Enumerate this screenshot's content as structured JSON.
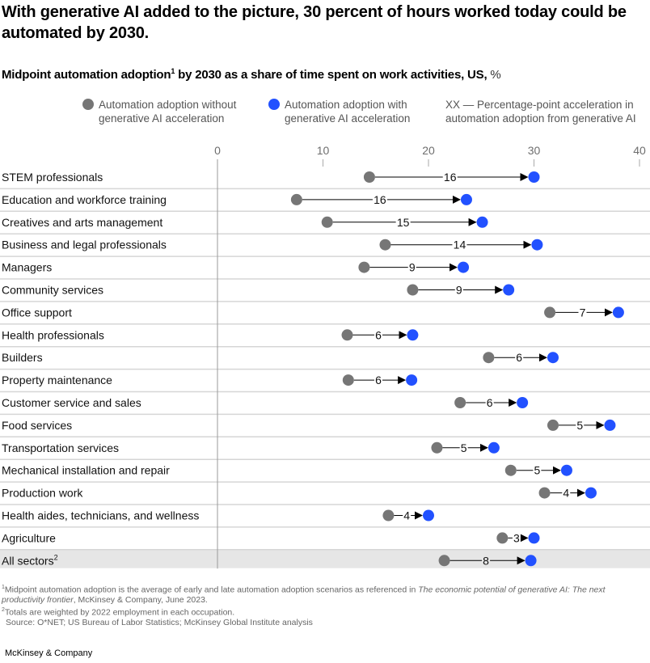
{
  "title": "With generative AI added to the picture, 30 percent of hours worked today could be automated by 2030.",
  "subtitle": {
    "text_before": "Midpoint automation adoption",
    "superscript": "1",
    "text_after": " by 2030 as a share of time spent on work activities, US, ",
    "unit": "%"
  },
  "legend": {
    "without": {
      "line1": "Automation adoption without",
      "line2": "generative AI acceleration"
    },
    "with": {
      "line1": "Automation adoption with",
      "line2": "generative AI acceleration"
    },
    "delta": {
      "line1": "XX — Percentage-point acceleration in",
      "line2": "automation adoption from generative AI"
    }
  },
  "colors": {
    "without": "#767676",
    "with": "#2251FF",
    "arrow": "#000000",
    "gridline": "#d6d6d6",
    "axis_line": "#9a9a9a",
    "highlight_row": "#e6e6e6"
  },
  "chart_data": {
    "type": "dumbbell",
    "title": "Midpoint automation adoption by 2030 as a share of time spent on work activities, US, %",
    "xlabel": "",
    "ylabel": "",
    "xlim": [
      0,
      40
    ],
    "xticks": [
      0,
      10,
      20,
      30,
      40
    ],
    "legend": [
      "Automation adoption without generative AI acceleration",
      "Automation adoption with generative AI acceleration"
    ],
    "legend_position": "top",
    "categories": [
      "STEM professionals",
      "Education and workforce training",
      "Creatives and arts management",
      "Business and legal professionals",
      "Managers",
      "Community services",
      "Office support",
      "Health professionals",
      "Builders",
      "Property maintenance",
      "Customer service and sales",
      "Food services",
      "Transportation services",
      "Mechanical installation and repair",
      "Production work",
      "Health aides, technicians, and wellness",
      "Agriculture",
      "All sectors"
    ],
    "category_superscripts": {
      "All sectors": "2"
    },
    "highlight_category": "All sectors",
    "series": [
      {
        "name": "Automation adoption without generative AI acceleration",
        "values": [
          14.4,
          7.5,
          10.4,
          15.9,
          13.9,
          18.5,
          31.5,
          12.3,
          25.7,
          12.4,
          23.0,
          31.8,
          20.8,
          27.8,
          31.0,
          16.2,
          27.0,
          21.5
        ]
      },
      {
        "name": "Automation adoption with generative AI acceleration",
        "values": [
          30.0,
          23.6,
          25.1,
          30.3,
          23.3,
          27.6,
          38.0,
          18.5,
          31.8,
          18.4,
          28.9,
          37.2,
          26.2,
          33.1,
          35.4,
          20.0,
          30.0,
          29.7
        ]
      }
    ],
    "delta_labels": [
      16,
      16,
      15,
      14,
      9,
      9,
      7,
      6,
      6,
      6,
      6,
      5,
      5,
      5,
      4,
      4,
      3,
      8
    ]
  },
  "footnotes": {
    "note1_sup": "1",
    "note1_text": "Midpoint automation adoption is the average of early and late automation adoption scenarios as referenced in ",
    "note1_italic": "The economic potential of generative AI: The next productivity frontier",
    "note1_tail": ", McKinsey & Company, June 2023.",
    "note2_sup": "2",
    "note2_text": "Totals are weighted by 2022 employment in each occupation.",
    "source": "Source: O*NET; US Bureau of Labor Statistics; McKinsey Global Institute analysis"
  },
  "brand": "McKinsey & Company"
}
